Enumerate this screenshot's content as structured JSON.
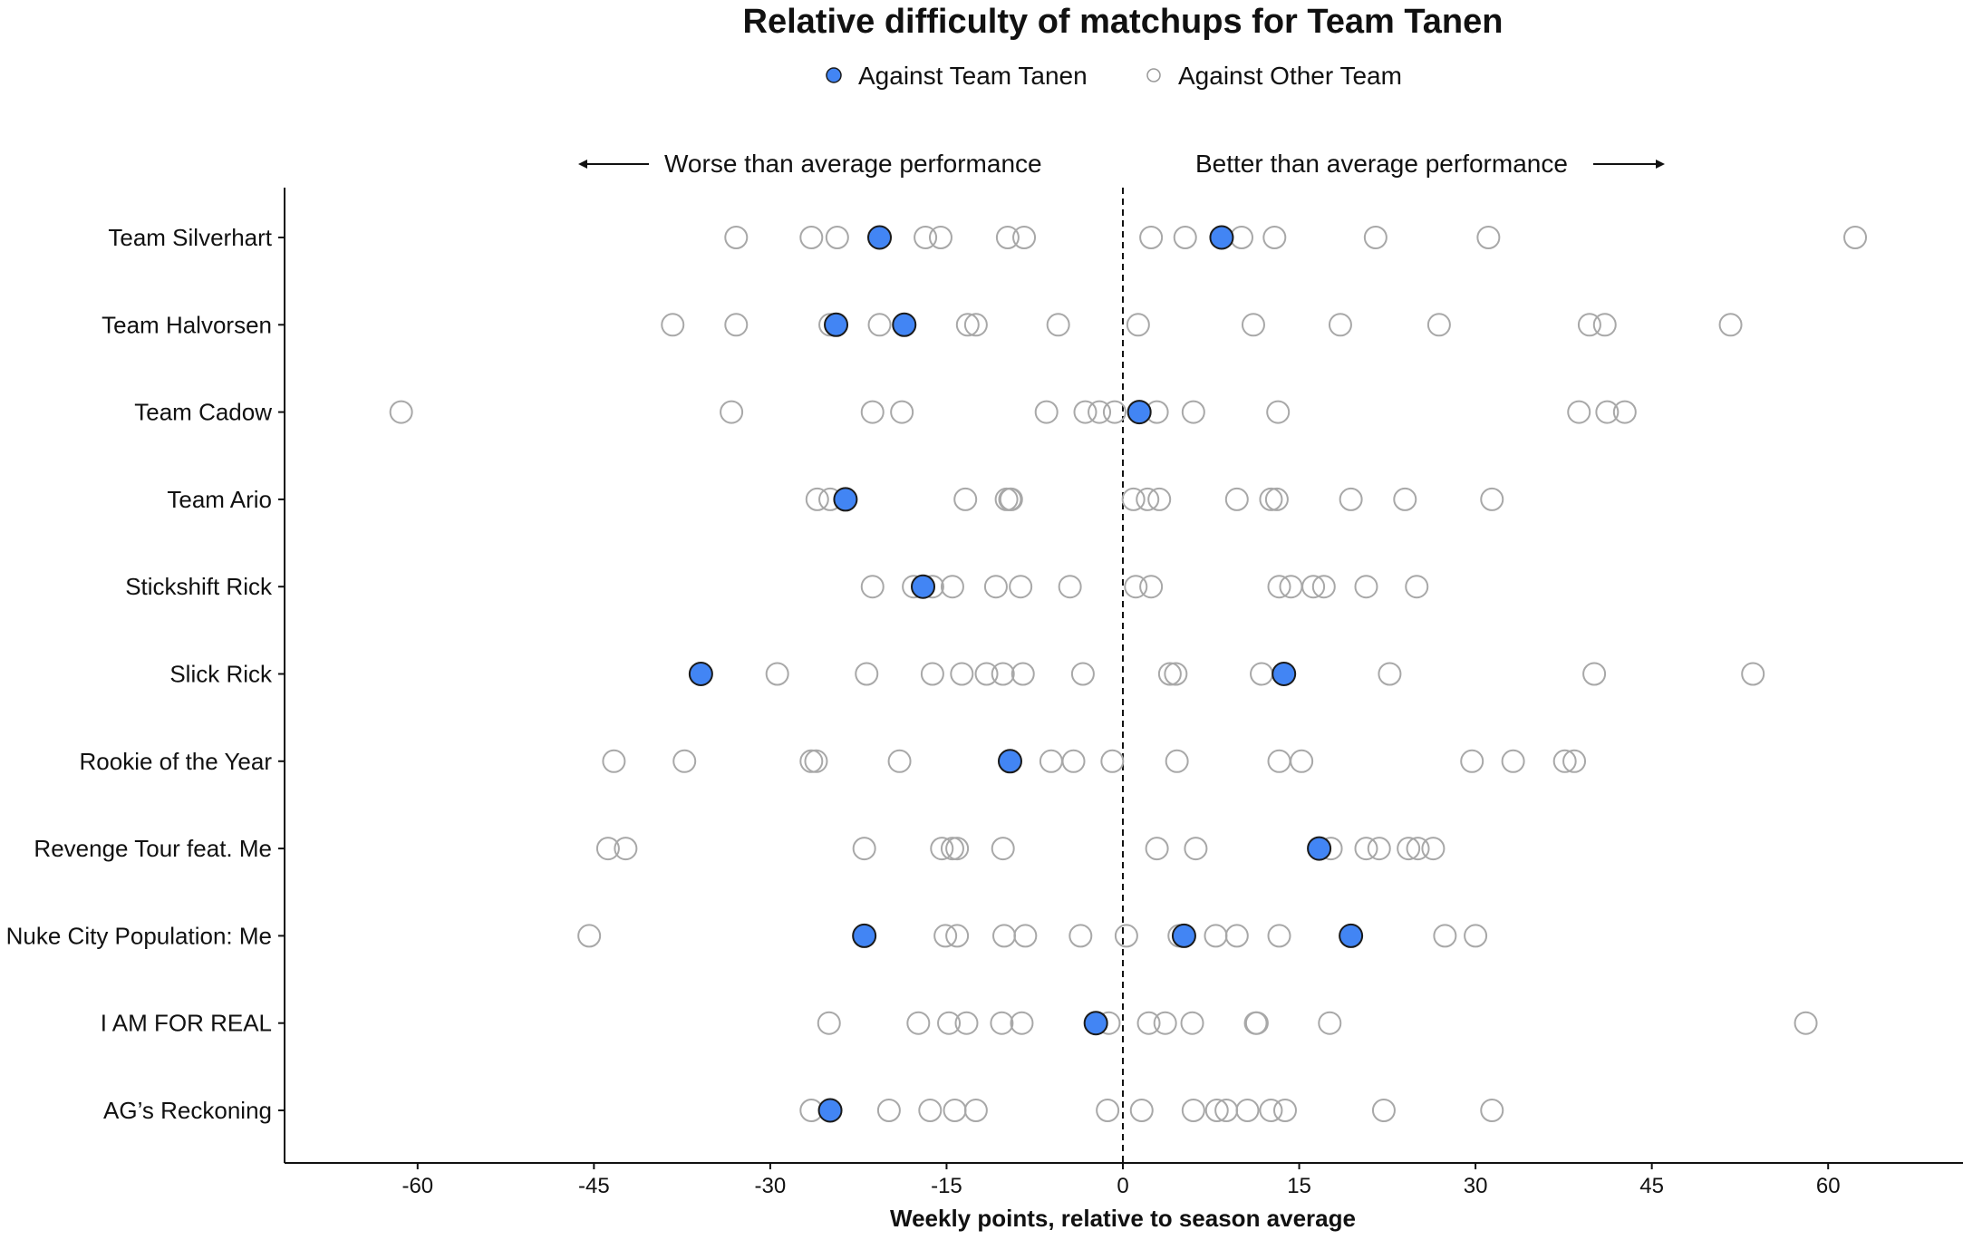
{
  "chart_data": {
    "type": "scatter",
    "title": "Relative difficulty of matchups for Team Tanen",
    "xlabel": "Weekly points, relative to season average",
    "ylabel": "",
    "xlim": [
      -67,
      71
    ],
    "xticks": [
      -60,
      -45,
      -30,
      -15,
      0,
      15,
      30,
      45,
      60
    ],
    "legend": {
      "placement": "top-center",
      "entries": [
        {
          "label": "Against Team Tanen",
          "color": "#4285F4",
          "filled": true
        },
        {
          "label": "Against Other Team",
          "color": "#ffffff",
          "filled": false
        }
      ]
    },
    "annotations": {
      "left": "Worse than average performance",
      "right": "Better than average performance"
    },
    "reference_line": 0,
    "rows": [
      {
        "team": "Team Silverhart",
        "tanen": [
          -20.7,
          8.4
        ],
        "other": [
          -32.9,
          -26.5,
          -24.3,
          -16.8,
          -15.5,
          -9.8,
          -8.4,
          2.4,
          5.3,
          10.1,
          12.9,
          21.5,
          31.1,
          62.3
        ]
      },
      {
        "team": "Team Halvorsen",
        "tanen": [
          -24.4,
          -18.6
        ],
        "other": [
          -38.3,
          -32.9,
          -24.9,
          -20.7,
          -13.2,
          -12.5,
          -5.5,
          1.3,
          11.1,
          18.5,
          26.9,
          39.7,
          41.0,
          51.7
        ]
      },
      {
        "team": "Team Cadow",
        "tanen": [
          1.4
        ],
        "other": [
          -61.4,
          -33.3,
          -21.3,
          -18.8,
          -6.5,
          -3.2,
          -2.0,
          -0.7,
          2.9,
          6.0,
          13.2,
          38.8,
          41.2,
          42.7
        ]
      },
      {
        "team": "Team Ario",
        "tanen": [
          -23.6
        ],
        "other": [
          -26.0,
          -24.9,
          -13.4,
          -9.9,
          -9.6,
          -9.5,
          0.9,
          2.1,
          3.1,
          9.7,
          12.6,
          13.1,
          19.4,
          24.0,
          31.4
        ]
      },
      {
        "team": "Stickshift Rick",
        "tanen": [
          -17.0
        ],
        "other": [
          -21.3,
          -17.8,
          -16.2,
          -14.5,
          -10.8,
          -8.7,
          -4.5,
          1.1,
          2.4,
          13.3,
          14.3,
          16.2,
          17.1,
          20.7,
          25.0
        ]
      },
      {
        "team": "Slick Rick",
        "tanen": [
          -35.9,
          13.7
        ],
        "other": [
          -29.4,
          -21.8,
          -16.2,
          -13.7,
          -11.6,
          -10.2,
          -8.5,
          -3.4,
          4.0,
          4.5,
          11.8,
          22.7,
          40.1,
          53.6
        ]
      },
      {
        "team": "Rookie of the Year",
        "tanen": [
          -9.6
        ],
        "other": [
          -43.3,
          -37.3,
          -26.5,
          -26.1,
          -19.0,
          -6.1,
          -4.2,
          -0.9,
          4.6,
          13.3,
          15.2,
          29.7,
          33.2,
          37.6,
          38.4
        ]
      },
      {
        "team": "Revenge Tour feat. Me",
        "tanen": [
          16.7
        ],
        "other": [
          -43.8,
          -42.3,
          -22.0,
          -15.4,
          -14.5,
          -14.1,
          -10.2,
          2.9,
          6.2,
          17.7,
          20.7,
          21.8,
          24.3,
          25.1,
          26.4
        ]
      },
      {
        "team": "Nuke City Population: Me",
        "tanen": [
          -22.0,
          5.2,
          19.4
        ],
        "other": [
          -45.4,
          -15.1,
          -14.1,
          -10.1,
          -8.3,
          -3.6,
          0.3,
          4.8,
          7.9,
          9.7,
          13.3,
          27.4,
          30.0
        ]
      },
      {
        "team": "I AM FOR REAL",
        "tanen": [
          -2.3
        ],
        "other": [
          -25.0,
          -17.4,
          -14.8,
          -13.3,
          -10.3,
          -8.6,
          -1.2,
          2.2,
          3.6,
          5.9,
          11.3,
          11.4,
          17.6,
          58.1
        ]
      },
      {
        "team": "AG’s Reckoning",
        "tanen": [
          -24.9
        ],
        "other": [
          -26.5,
          -19.9,
          -16.4,
          -14.3,
          -12.5,
          -1.3,
          1.6,
          6.0,
          8.0,
          8.8,
          10.6,
          12.6,
          13.8,
          22.2,
          31.4
        ]
      }
    ]
  }
}
